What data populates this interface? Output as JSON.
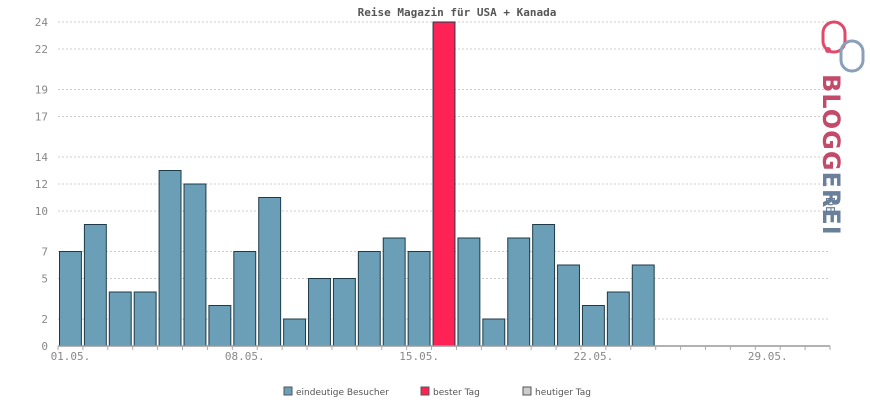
{
  "chart_data": {
    "type": "bar",
    "title": "Reise Magazin für USA + Kanada",
    "xlabel": "",
    "ylabel": "",
    "ylim": [
      0,
      24
    ],
    "yticks": [
      0,
      2,
      5,
      7,
      10,
      12,
      14,
      17,
      19,
      22,
      24
    ],
    "day_count": 31,
    "x_tick_labels": [
      {
        "day": 1,
        "label": "01.05."
      },
      {
        "day": 8,
        "label": "08.05."
      },
      {
        "day": 15,
        "label": "15.05."
      },
      {
        "day": 22,
        "label": "22.05."
      },
      {
        "day": 29,
        "label": "29.05."
      }
    ],
    "series": [
      {
        "name": "eindeutige Besucher",
        "color": "#6b9fb8",
        "values": [
          7,
          9,
          4,
          4,
          13,
          12,
          3,
          7,
          11,
          2,
          5,
          5,
          7,
          8,
          7,
          24,
          8,
          2,
          8,
          9,
          6,
          3,
          4,
          6
        ]
      }
    ],
    "best_day_index": 15,
    "colors": {
      "visitors": "#6b9fb8",
      "best": "#ff2255",
      "today": "#cccccc"
    },
    "grid": true,
    "legend_position": "bottom-center"
  },
  "legend": [
    {
      "label": "eindeutige Besucher",
      "color": "#6b9fb8"
    },
    {
      "label": "bester Tag",
      "color": "#ff2255"
    },
    {
      "label": "heutiger Tag",
      "color": "#cccccc"
    }
  ],
  "logo": {
    "brand": "BLOGGEREI",
    "tld": ".DE",
    "icon": "bloggerei-logo-icon"
  }
}
